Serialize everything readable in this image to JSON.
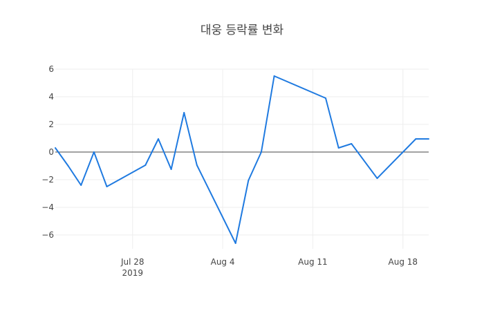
{
  "chart_data": {
    "type": "line",
    "title": "대웅 등락률 변화",
    "xlabel": "",
    "ylabel": "",
    "x_type": "date",
    "xlim": [
      "2019-07-22",
      "2019-08-20"
    ],
    "ylim": [
      -7,
      6
    ],
    "yticks": [
      -6,
      -4,
      -2,
      0,
      2,
      4,
      6
    ],
    "y_tick_labels": [
      "−6",
      "−4",
      "−2",
      "0",
      "2",
      "4",
      "6"
    ],
    "xticks": [
      {
        "date": "2019-07-28",
        "label": "Jul 28",
        "sublabel": "2019"
      },
      {
        "date": "2019-08-04",
        "label": "Aug 4",
        "sublabel": ""
      },
      {
        "date": "2019-08-11",
        "label": "Aug 11",
        "sublabel": ""
      },
      {
        "date": "2019-08-18",
        "label": "Aug 18",
        "sublabel": ""
      }
    ],
    "grid": true,
    "zero_line": true,
    "legend": "none",
    "series": [
      {
        "color": "#1f7ae0",
        "x": [
          "2019-07-22",
          "2019-07-23",
          "2019-07-24",
          "2019-07-25",
          "2019-07-26",
          "2019-07-29",
          "2019-07-30",
          "2019-07-31",
          "2019-08-01",
          "2019-08-02",
          "2019-08-05",
          "2019-08-06",
          "2019-08-07",
          "2019-08-08",
          "2019-08-12",
          "2019-08-13",
          "2019-08-14",
          "2019-08-16",
          "2019-08-19",
          "2019-08-20"
        ],
        "y": [
          0.3,
          -1.0,
          -2.4,
          0.0,
          -2.5,
          -0.95,
          0.95,
          -1.25,
          2.85,
          -0.95,
          -6.6,
          -2.05,
          0.0,
          5.5,
          3.9,
          0.3,
          0.6,
          -1.9,
          0.95,
          0.95
        ]
      }
    ]
  }
}
